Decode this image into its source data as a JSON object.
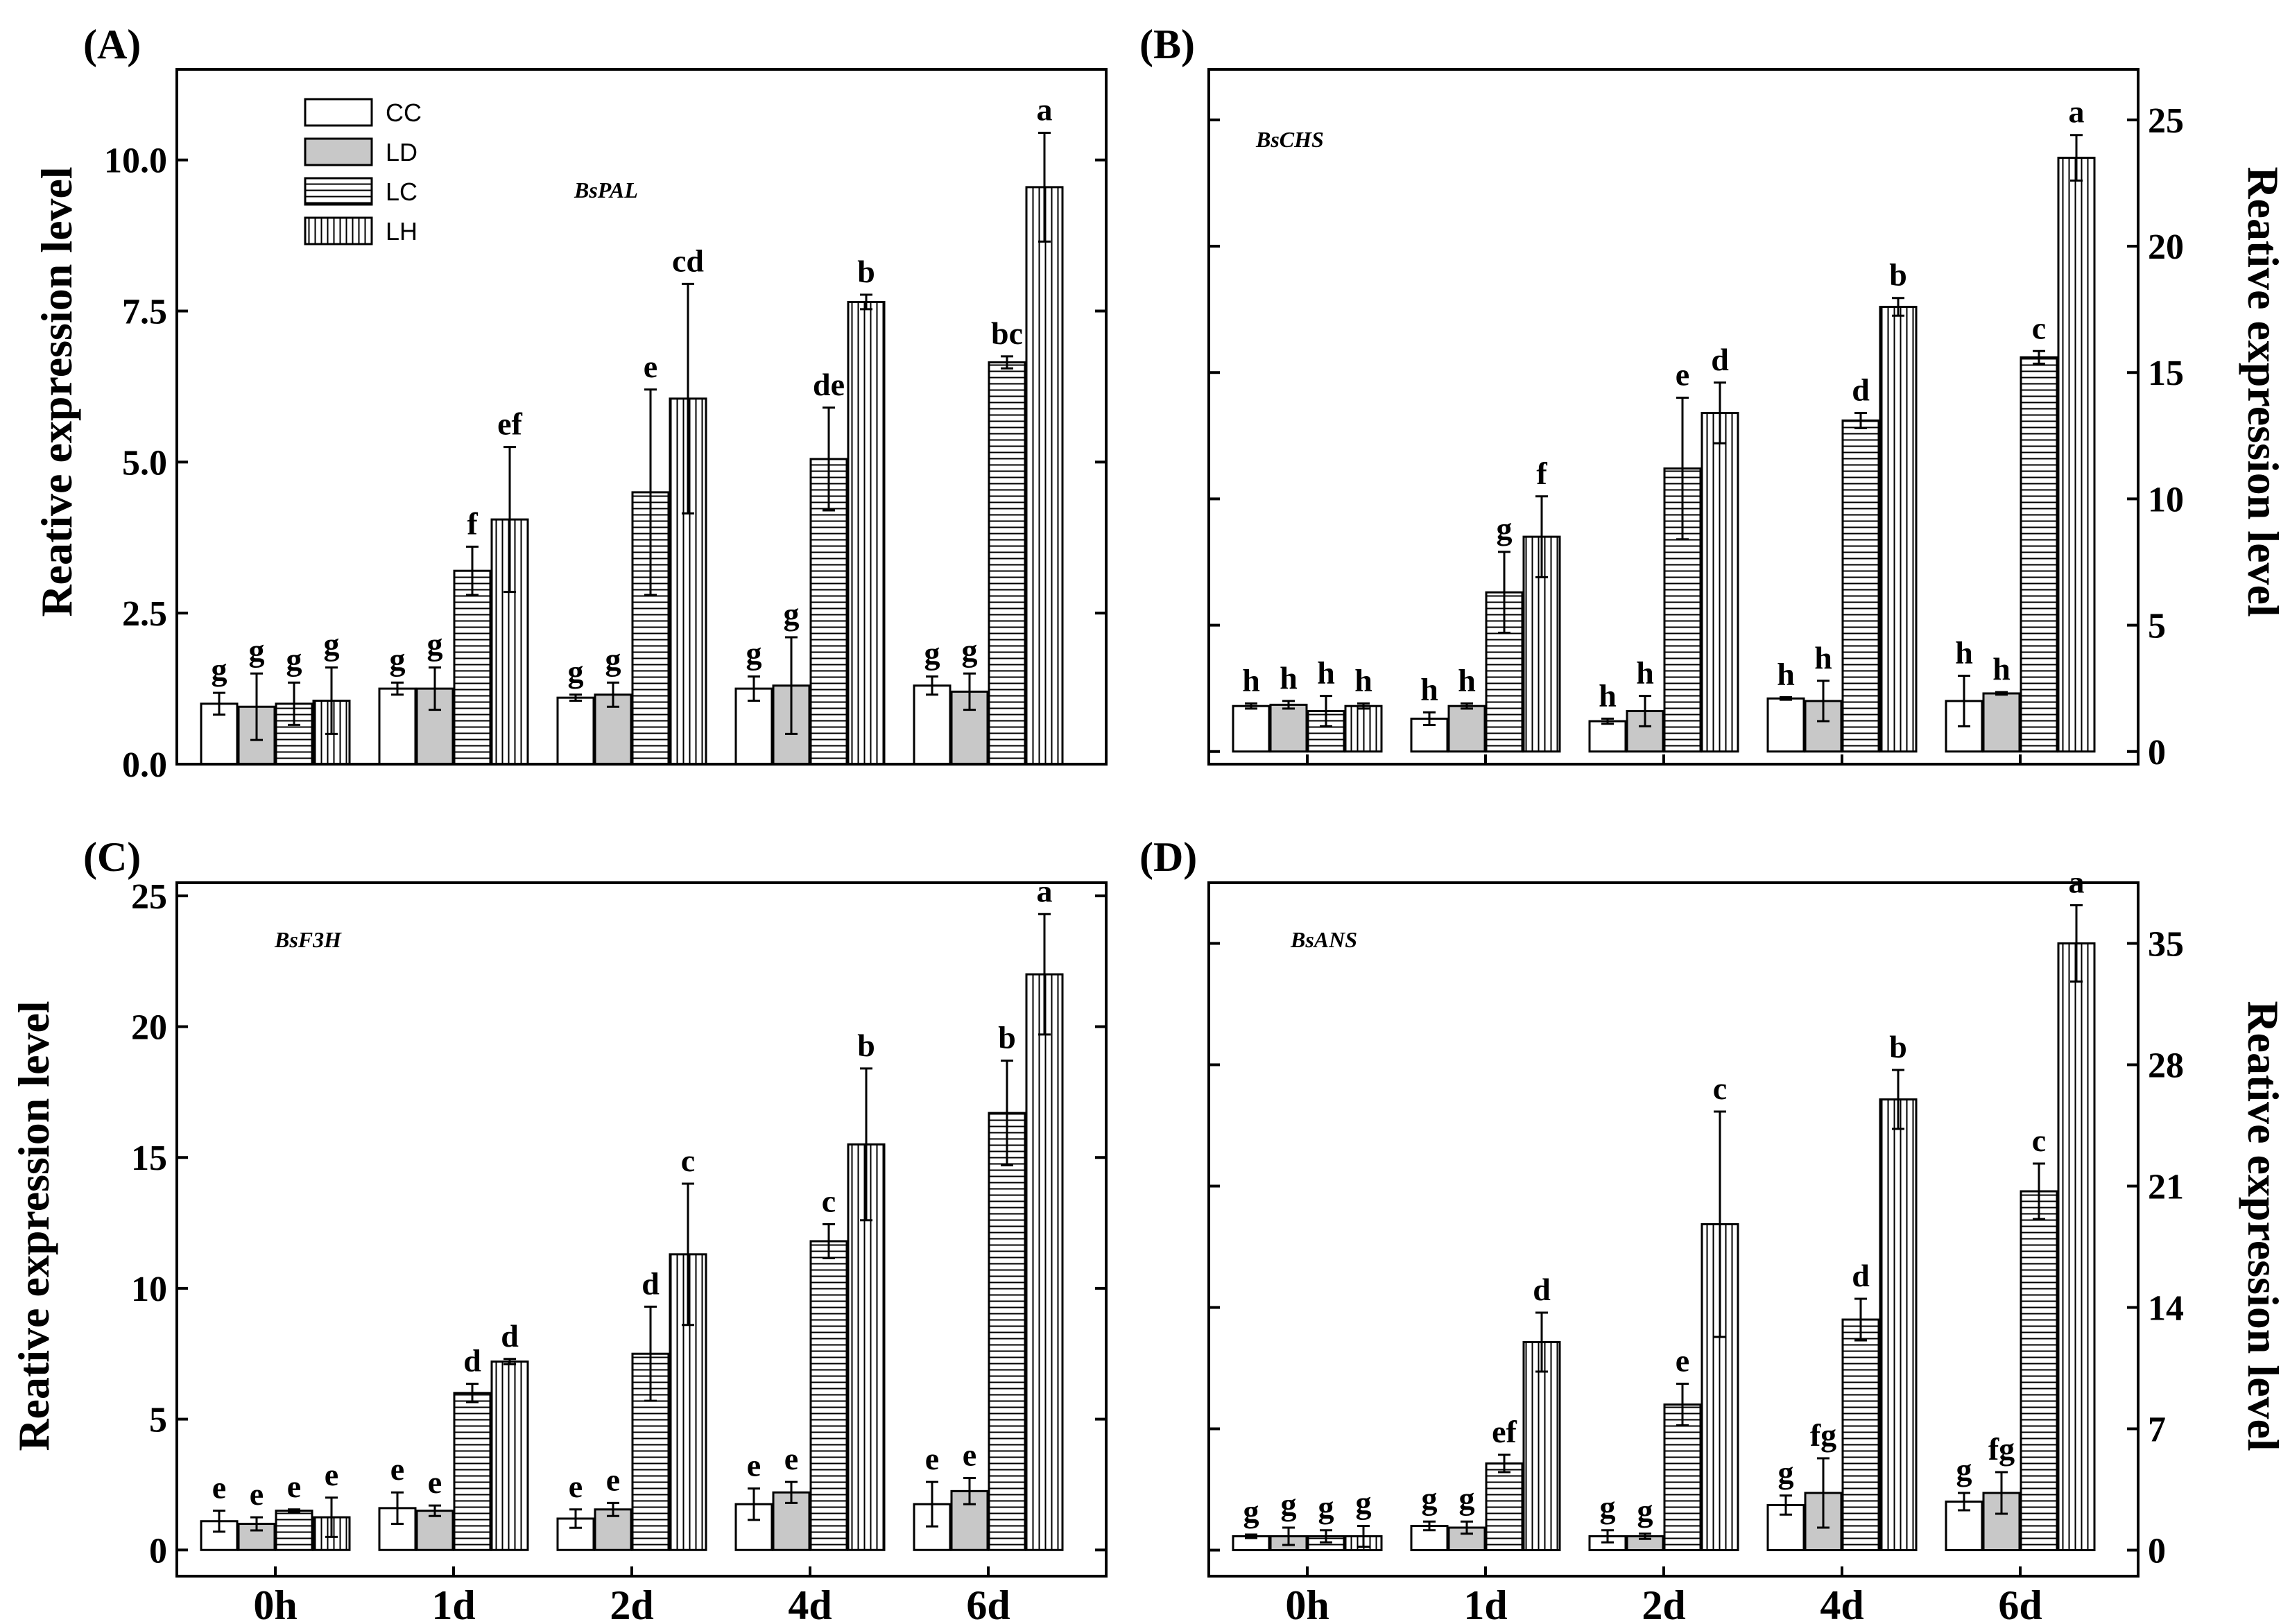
{
  "chart_data": [
    {
      "type": "bar",
      "panel": "(A)",
      "gene": "BsPAL",
      "ylabel": "Reative expression level",
      "ylabel_side": "left",
      "ylim": [
        0,
        11.5
      ],
      "yticks": [
        0.0,
        2.5,
        5.0,
        7.5,
        10.0
      ],
      "ytick_labels": [
        "0.0",
        "2.5",
        "5.0",
        "7.5",
        "10.0"
      ],
      "categories": [
        "0h",
        "1d",
        "2d",
        "4d",
        "6d"
      ],
      "show_xticks": false,
      "legend": {
        "placement": "top-left",
        "entries": [
          "CC",
          "LD",
          "LC",
          "LH"
        ]
      },
      "series": [
        {
          "name": "CC",
          "values": [
            1.0,
            1.25,
            1.1,
            1.25,
            1.3
          ],
          "errors": [
            0.18,
            0.1,
            0.05,
            0.2,
            0.15
          ],
          "letters": [
            "g",
            "g",
            "g",
            "g",
            "g"
          ]
        },
        {
          "name": "LD",
          "values": [
            0.95,
            1.25,
            1.15,
            1.3,
            1.2
          ],
          "errors": [
            0.55,
            0.35,
            0.2,
            0.8,
            0.3
          ],
          "letters": [
            "g",
            "g",
            "g",
            "g",
            "g"
          ]
        },
        {
          "name": "LC",
          "values": [
            1.0,
            3.2,
            4.5,
            5.05,
            6.65
          ],
          "errors": [
            0.35,
            0.4,
            1.7,
            0.85,
            0.1
          ],
          "letters": [
            "g",
            "f",
            "e",
            "de",
            "bc"
          ]
        },
        {
          "name": "LH",
          "values": [
            1.05,
            4.05,
            6.05,
            7.65,
            9.55
          ],
          "errors": [
            0.55,
            1.2,
            1.9,
            0.12,
            0.9
          ],
          "letters": [
            "g",
            "ef",
            "cd",
            "b",
            "a"
          ]
        }
      ]
    },
    {
      "type": "bar",
      "panel": "(B)",
      "gene": "BsCHS",
      "ylabel": "Reative expression level",
      "ylabel_side": "right",
      "ylim": [
        -0.5,
        27
      ],
      "yticks": [
        0,
        5,
        10,
        15,
        20,
        25
      ],
      "ytick_labels": [
        "0",
        "5",
        "10",
        "15",
        "20",
        "25"
      ],
      "categories": [
        "0h",
        "1d",
        "2d",
        "4d",
        "6d"
      ],
      "show_xticks": false,
      "series": [
        {
          "name": "CC",
          "values": [
            1.8,
            1.3,
            1.2,
            2.1,
            2.0
          ],
          "errors": [
            0.1,
            0.25,
            0.1,
            0.05,
            1.0
          ],
          "letters": [
            "h",
            "h",
            "h",
            "h",
            "h"
          ]
        },
        {
          "name": "LD",
          "values": [
            1.85,
            1.8,
            1.6,
            2.0,
            2.3
          ],
          "errors": [
            0.15,
            0.1,
            0.6,
            0.8,
            0.05
          ],
          "letters": [
            "h",
            "h",
            "h",
            "h",
            "h"
          ]
        },
        {
          "name": "LC",
          "values": [
            1.6,
            6.3,
            11.2,
            13.1,
            15.6
          ],
          "errors": [
            0.6,
            1.6,
            2.8,
            0.3,
            0.25
          ],
          "letters": [
            "h",
            "g",
            "e",
            "d",
            "c"
          ]
        },
        {
          "name": "LH",
          "values": [
            1.8,
            8.5,
            13.4,
            17.6,
            23.5
          ],
          "errors": [
            0.1,
            1.6,
            1.2,
            0.35,
            0.9
          ],
          "letters": [
            "h",
            "f",
            "d",
            "b",
            "a"
          ]
        }
      ]
    },
    {
      "type": "bar",
      "panel": "(C)",
      "gene": "BsF3H",
      "ylabel": "Reative expression level",
      "ylabel_side": "left",
      "ylim": [
        -1,
        25.5
      ],
      "yticks": [
        0,
        5,
        10,
        15,
        20,
        25
      ],
      "ytick_labels": [
        "0",
        "5",
        "10",
        "15",
        "20",
        "25"
      ],
      "categories": [
        "0h",
        "1d",
        "2d",
        "4d",
        "6d"
      ],
      "show_xticks": true,
      "series": [
        {
          "name": "CC",
          "values": [
            1.1,
            1.6,
            1.2,
            1.75,
            1.75
          ],
          "errors": [
            0.4,
            0.6,
            0.35,
            0.6,
            0.85
          ],
          "letters": [
            "e",
            "e",
            "e",
            "e",
            "e"
          ]
        },
        {
          "name": "LD",
          "values": [
            1.0,
            1.5,
            1.55,
            2.2,
            2.25
          ],
          "errors": [
            0.25,
            0.2,
            0.25,
            0.4,
            0.5
          ],
          "letters": [
            "e",
            "e",
            "e",
            "e",
            "e"
          ]
        },
        {
          "name": "LC",
          "values": [
            1.5,
            6.0,
            7.5,
            11.8,
            16.7
          ],
          "errors": [
            0.05,
            0.35,
            1.8,
            0.65,
            2.0
          ],
          "letters": [
            "e",
            "d",
            "d",
            "c",
            "b"
          ]
        },
        {
          "name": "LH",
          "values": [
            1.25,
            7.2,
            11.3,
            15.5,
            22.0
          ],
          "errors": [
            0.75,
            0.1,
            2.7,
            2.9,
            2.3
          ],
          "letters": [
            "e",
            "d",
            "c",
            "b",
            "a"
          ]
        }
      ]
    },
    {
      "type": "bar",
      "panel": "(D)",
      "gene": "BsANS",
      "ylabel": "Reative expression level",
      "ylabel_side": "right",
      "ylim": [
        -1.5,
        38.5
      ],
      "yticks": [
        0,
        7,
        14,
        21,
        28,
        35
      ],
      "ytick_labels": [
        "0",
        "7",
        "14",
        "21",
        "28",
        "35"
      ],
      "categories": [
        "0h",
        "1d",
        "2d",
        "4d",
        "6d"
      ],
      "show_xticks": true,
      "series": [
        {
          "name": "CC",
          "values": [
            0.8,
            1.4,
            0.8,
            2.6,
            2.8
          ],
          "errors": [
            0.1,
            0.25,
            0.35,
            0.55,
            0.5
          ],
          "letters": [
            "g",
            "g",
            "g",
            "g",
            "g"
          ]
        },
        {
          "name": "LD",
          "values": [
            0.8,
            1.3,
            0.8,
            3.3,
            3.3
          ],
          "errors": [
            0.5,
            0.35,
            0.15,
            2.0,
            1.2
          ],
          "letters": [
            "g",
            "g",
            "g",
            "fg",
            "fg"
          ]
        },
        {
          "name": "LC",
          "values": [
            0.8,
            5.0,
            8.4,
            13.3,
            20.7
          ],
          "errors": [
            0.35,
            0.5,
            1.2,
            1.2,
            1.6
          ],
          "letters": [
            "g",
            "ef",
            "e",
            "d",
            "c"
          ]
        },
        {
          "name": "LH",
          "values": [
            0.8,
            12.0,
            18.8,
            26.0,
            35.0
          ],
          "errors": [
            0.6,
            1.7,
            6.5,
            1.7,
            2.2
          ],
          "letters": [
            "g",
            "d",
            "c",
            "b",
            "a"
          ]
        }
      ]
    }
  ]
}
